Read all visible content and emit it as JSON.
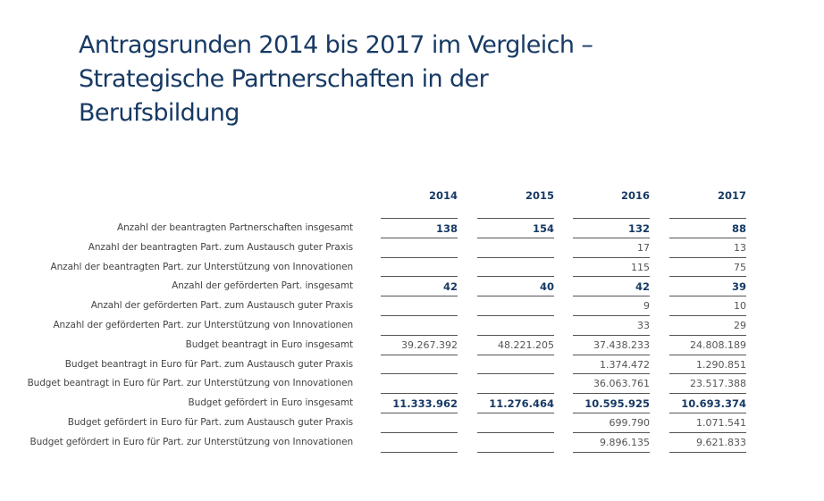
{
  "title": {
    "lines": [
      "Antragsrunden 2014 bis 2017 im Vergleich –",
      "Strategische Partnerschaften in der",
      "Berufsbildung"
    ]
  },
  "table": {
    "columns": [
      "2014",
      "2015",
      "2016",
      "2017"
    ],
    "rows": [
      {
        "label": "Anzahl der beantragten Partnerschaften insgesamt",
        "bold": true,
        "values": [
          "138",
          "154",
          "132",
          "88"
        ]
      },
      {
        "label": "Anzahl der beantragten Part. zum Austausch guter Praxis",
        "bold": false,
        "values": [
          "",
          "",
          "17",
          "13"
        ]
      },
      {
        "label": "Anzahl der beantragten Part. zur Unterstützung von Innovationen",
        "bold": false,
        "values": [
          "",
          "",
          "115",
          "75"
        ]
      },
      {
        "label": "Anzahl der geförderten Part. insgesamt",
        "bold": true,
        "values": [
          "42",
          "40",
          "42",
          "39"
        ]
      },
      {
        "label": "Anzahl der geförderten Part. zum Austausch guter Praxis",
        "bold": false,
        "values": [
          "",
          "",
          "9",
          "10"
        ]
      },
      {
        "label": "Anzahl der geförderten Part. zur Unterstützung von Innovationen",
        "bold": false,
        "values": [
          "",
          "",
          "33",
          "29"
        ]
      },
      {
        "label": "Budget beantragt in Euro insgesamt",
        "bold": false,
        "values": [
          "39.267.392",
          "48.221.205",
          "37.438.233",
          "24.808.189"
        ]
      },
      {
        "label": "Budget beantragt in Euro für Part. zum Austausch guter Praxis",
        "bold": false,
        "values": [
          "",
          "",
          "1.374.472",
          "1.290.851"
        ]
      },
      {
        "label": "Budget beantragt in Euro für Part. zur Unterstützung von Innovationen",
        "bold": false,
        "values": [
          "",
          "",
          "36.063.761",
          "23.517.388"
        ]
      },
      {
        "label": "Budget gefördert in Euro insgesamt",
        "bold": true,
        "values": [
          "11.333.962",
          "11.276.464",
          "10.595.925",
          "10.693.374"
        ]
      },
      {
        "label": "Budget gefördert in Euro für Part. zum Austausch guter Praxis",
        "bold": false,
        "values": [
          "",
          "",
          "699.790",
          "1.071.541"
        ]
      },
      {
        "label": "Budget gefördert in Euro für Part. zur Unterstützung von Innovationen",
        "bold": false,
        "values": [
          "",
          "",
          "9.896.135",
          "9.621.833"
        ]
      }
    ]
  },
  "colors": {
    "title": "#173a64",
    "bold_values": "#173a64",
    "text": "#444444",
    "rule": "#555555"
  }
}
